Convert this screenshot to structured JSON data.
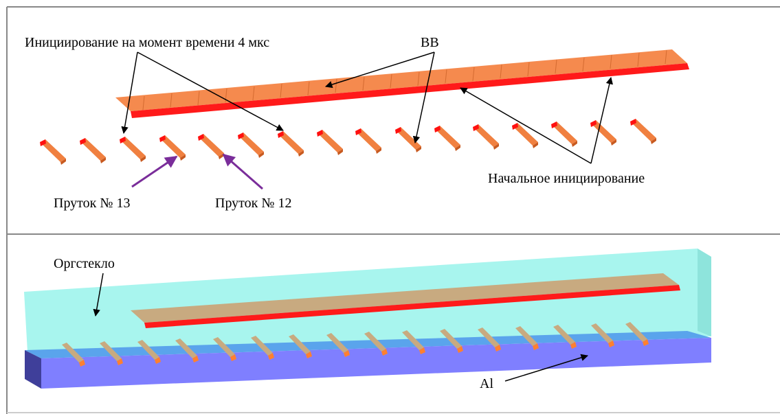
{
  "top_panel": {
    "initiation_4us": "Инициирование на момент времени 4 мкс",
    "explosive": "ВВ",
    "initial_initiation": "Начальное инициирование",
    "rod_13": "Пруток № 13",
    "rod_12": "Пруток № 12"
  },
  "bottom_panel": {
    "plexiglass": "Оргстекло",
    "aluminum": "Al"
  }
}
